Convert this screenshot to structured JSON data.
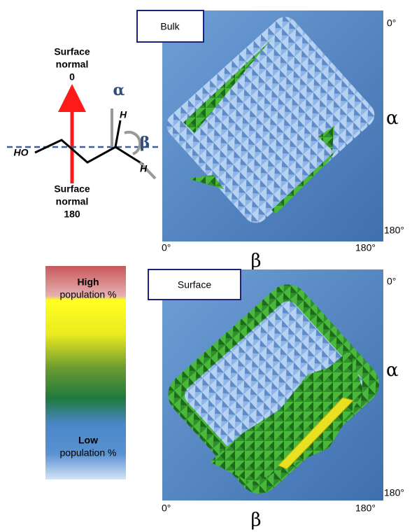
{
  "molecule": {
    "top_label": [
      "Surface",
      "normal",
      "0"
    ],
    "bottom_label": [
      "Surface",
      "normal",
      "180"
    ],
    "alpha": "α",
    "beta": "β",
    "ho": "HO",
    "h_top": "H",
    "h_bottom": "H"
  },
  "colorbar": {
    "high": [
      "High",
      "population %"
    ],
    "low": [
      "Low",
      "population %"
    ]
  },
  "panels": [
    {
      "title": "Bulk",
      "y_top": "0°",
      "y_axis": "α",
      "y_bottom": "180°",
      "x_left": "0°",
      "x_right": "180°",
      "x_axis": "β"
    },
    {
      "title": "Surface",
      "y_top": "0°",
      "y_axis": "α",
      "y_bottom": "180°",
      "x_left": "0°",
      "x_right": "180°",
      "x_axis": "β"
    }
  ]
}
